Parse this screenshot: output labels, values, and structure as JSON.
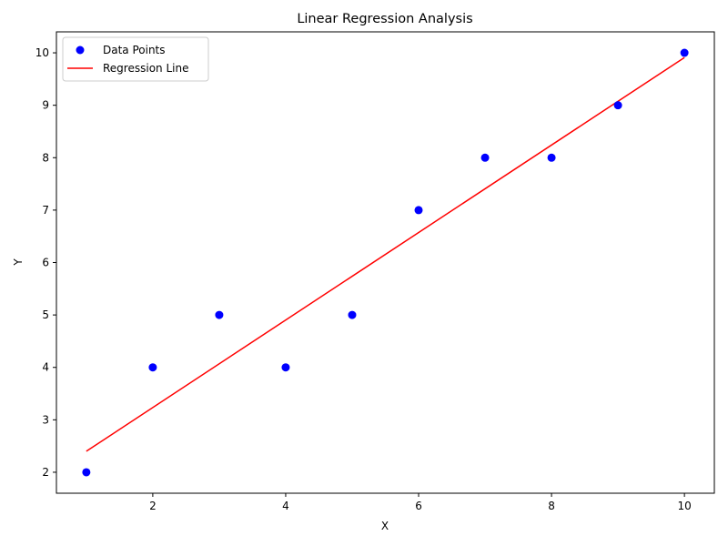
{
  "chart_data": {
    "type": "scatter",
    "title": "Linear Regression Analysis",
    "xlabel": "X",
    "ylabel": "Y",
    "xlim": [
      0.55,
      10.45
    ],
    "ylim": [
      1.6,
      10.4
    ],
    "xticks": [
      2,
      4,
      6,
      8,
      10
    ],
    "yticks": [
      2,
      3,
      4,
      5,
      6,
      7,
      8,
      9,
      10
    ],
    "grid": false,
    "legend": "upper-left",
    "series": [
      {
        "name": "Data Points",
        "kind": "scatter",
        "color": "#0000ff",
        "x": [
          1,
          2,
          3,
          4,
          5,
          6,
          7,
          8,
          9,
          10
        ],
        "y": [
          2,
          4,
          5,
          4,
          5,
          7,
          8,
          8,
          9,
          10
        ]
      },
      {
        "name": "Regression Line",
        "kind": "line",
        "color": "#ff0000",
        "x": [
          1,
          10
        ],
        "y": [
          2.4,
          9.91
        ]
      }
    ]
  }
}
